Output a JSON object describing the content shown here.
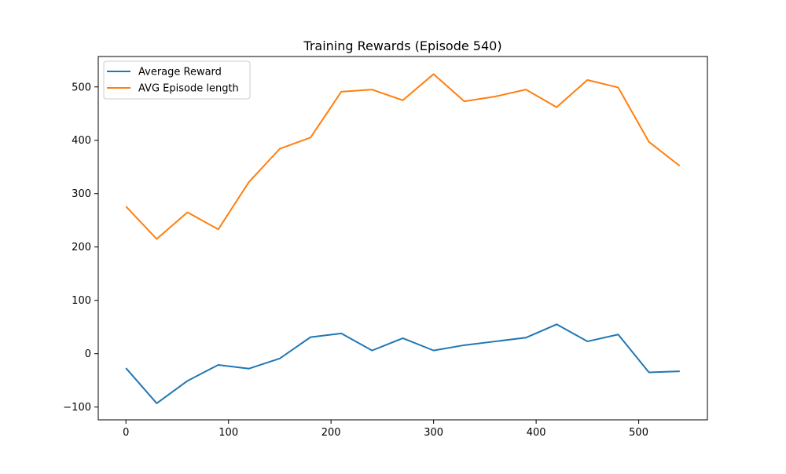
{
  "chart_data": {
    "type": "line",
    "title": "Training Rewards (Episode 540)",
    "xlabel": "",
    "ylabel": "",
    "xlim": [
      -27,
      567
    ],
    "ylim": [
      -124,
      557
    ],
    "xticks": [
      0,
      100,
      200,
      300,
      400,
      500
    ],
    "yticks": [
      -100,
      0,
      100,
      200,
      300,
      400,
      500
    ],
    "xtick_labels": [
      "0",
      "100",
      "200",
      "300",
      "400",
      "500"
    ],
    "ytick_labels": [
      "−100",
      "0",
      "100",
      "200",
      "300",
      "400",
      "500"
    ],
    "grid": false,
    "legend_position": "top-left",
    "x": [
      0,
      30,
      60,
      90,
      120,
      150,
      180,
      210,
      240,
      270,
      300,
      330,
      360,
      390,
      420,
      450,
      480,
      510,
      540
    ],
    "series": [
      {
        "name": "Average Reward",
        "color": "#1f77b4",
        "values": [
          -27,
          -93,
          -51,
          -21,
          -28,
          -9,
          31,
          38,
          6,
          29,
          6,
          16,
          23,
          30,
          55,
          23,
          36,
          -35,
          -33
        ]
      },
      {
        "name": "AVG Episode length",
        "color": "#ff7f0e",
        "values": [
          276,
          215,
          265,
          233,
          322,
          384,
          405,
          491,
          495,
          475,
          524,
          473,
          482,
          495,
          462,
          513,
          499,
          397,
          352
        ]
      }
    ]
  }
}
